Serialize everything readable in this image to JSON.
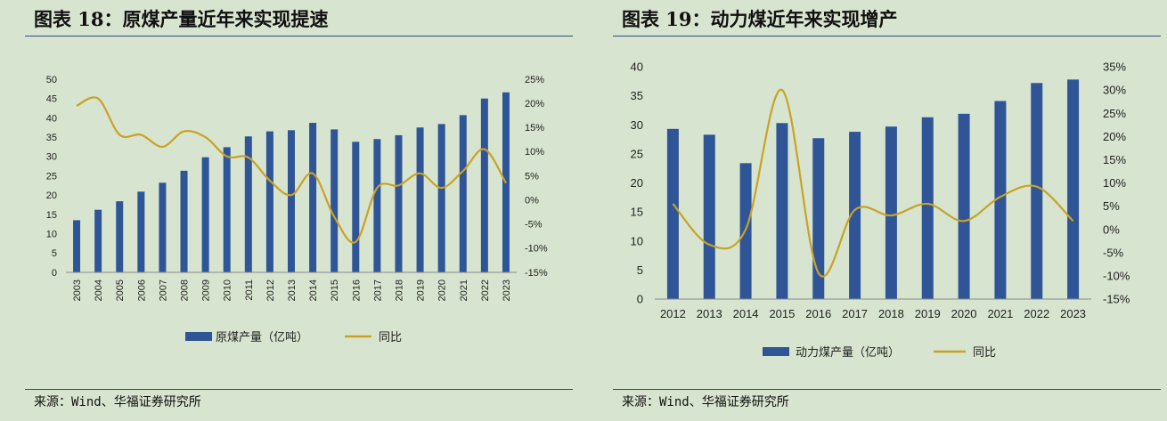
{
  "charts": [
    {
      "title": "图表 18：原煤产量近年来实现提速",
      "source": "来源：Wind、华福证券研究所",
      "chart_data": {
        "type": "bar",
        "categories": [
          "2003",
          "2004",
          "2005",
          "2006",
          "2007",
          "2008",
          "2009",
          "2010",
          "2011",
          "2012",
          "2013",
          "2014",
          "2015",
          "2016",
          "2017",
          "2018",
          "2019",
          "2020",
          "2021",
          "2022",
          "2023"
        ],
        "series": [
          {
            "name": "原煤产量（亿吨）",
            "type": "bar",
            "axis": "left",
            "values": [
              13.5,
              16.2,
              18.4,
              20.9,
              23.2,
              26.3,
              29.8,
              32.4,
              35.2,
              36.5,
              36.8,
              38.7,
              37.0,
              33.8,
              34.5,
              35.5,
              37.5,
              38.4,
              40.7,
              45.0,
              46.6
            ]
          },
          {
            "name": "同比",
            "type": "line",
            "axis": "right",
            "values": [
              19.5,
              21.0,
              13.5,
              13.5,
              11.0,
              14.2,
              13.0,
              9.0,
              8.8,
              4.0,
              1.0,
              5.5,
              -3.5,
              -8.7,
              2.5,
              3.0,
              5.5,
              2.5,
              6.0,
              10.5,
              3.5
            ]
          }
        ],
        "y_left": {
          "min": 0,
          "max": 50,
          "ticks": [
            "0",
            "5",
            "10",
            "15",
            "20",
            "25",
            "30",
            "35",
            "40",
            "45",
            "50"
          ]
        },
        "y_right": {
          "min": -15,
          "max": 25,
          "ticks": [
            "-15%",
            "-10%",
            "-5%",
            "0%",
            "5%",
            "10%",
            "15%",
            "20%",
            "25%"
          ]
        },
        "x_labels_rotated": true,
        "grid": false,
        "legend_position": "bottom",
        "colors": {
          "bar": "#2f5597",
          "line": "#c9a227"
        }
      }
    },
    {
      "title": "图表 19：动力煤近年来实现增产",
      "source": "来源：Wind、华福证券研究所",
      "chart_data": {
        "type": "bar",
        "categories": [
          "2012",
          "2013",
          "2014",
          "2015",
          "2016",
          "2017",
          "2018",
          "2019",
          "2020",
          "2021",
          "2022",
          "2023"
        ],
        "series": [
          {
            "name": "动力煤产量（亿吨）",
            "type": "bar",
            "axis": "left",
            "values": [
              29.3,
              28.3,
              23.4,
              30.3,
              27.7,
              28.8,
              29.7,
              31.3,
              31.9,
              34.1,
              37.2,
              37.8
            ]
          },
          {
            "name": "同比",
            "type": "line",
            "axis": "right",
            "values": [
              5.5,
              -3.3,
              0.0,
              30.0,
              -9.4,
              4.2,
              3.0,
              5.5,
              1.8,
              7.0,
              9.2,
              1.8
            ]
          }
        ],
        "y_left": {
          "min": 0,
          "max": 40,
          "ticks": [
            "0",
            "5",
            "10",
            "15",
            "20",
            "25",
            "30",
            "35",
            "40"
          ]
        },
        "y_right": {
          "min": -15,
          "max": 35,
          "ticks": [
            "-15%",
            "-10%",
            "-5%",
            "0%",
            "5%",
            "10%",
            "15%",
            "20%",
            "25%",
            "30%",
            "35%"
          ]
        },
        "x_labels_rotated": false,
        "grid": false,
        "legend_position": "bottom",
        "colors": {
          "bar": "#2f5597",
          "line": "#c9a227"
        }
      }
    }
  ]
}
